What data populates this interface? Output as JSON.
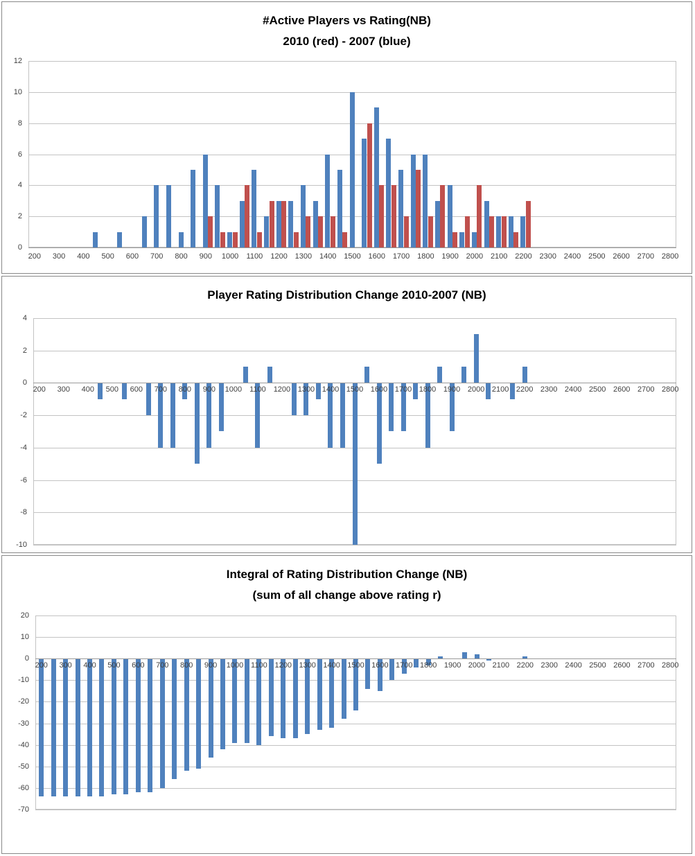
{
  "chart_data": [
    {
      "type": "bar",
      "title": "#Active Players vs Rating(NB)",
      "subtitle": "2010 (red) - 2007 (blue)",
      "xlabel": "",
      "ylabel": "",
      "ylim": [
        0,
        12
      ],
      "y_ticks": [
        12,
        10,
        8,
        6,
        4,
        2,
        0
      ],
      "x_tick_labels": [
        200,
        300,
        400,
        500,
        600,
        700,
        800,
        900,
        1000,
        1100,
        1200,
        1300,
        1400,
        1500,
        1600,
        1700,
        1800,
        1900,
        2000,
        2100,
        2200,
        2300,
        2400,
        2500,
        2600,
        2700,
        2800
      ],
      "grid": true,
      "legend_position": "none",
      "categories": [
        200,
        250,
        300,
        350,
        400,
        450,
        500,
        550,
        600,
        650,
        700,
        750,
        800,
        850,
        900,
        950,
        1000,
        1050,
        1100,
        1150,
        1200,
        1250,
        1300,
        1350,
        1400,
        1450,
        1500,
        1550,
        1600,
        1650,
        1700,
        1750,
        1800,
        1850,
        1900,
        1950,
        2000,
        2050,
        2100,
        2150,
        2200,
        2250,
        2300,
        2350,
        2400,
        2450,
        2500,
        2550,
        2600,
        2650,
        2700,
        2750,
        2800
      ],
      "series": [
        {
          "name": "2007",
          "color": "#4F81BD",
          "values": [
            0,
            0,
            0,
            0,
            0,
            1,
            0,
            1,
            0,
            2,
            4,
            4,
            1,
            5,
            6,
            4,
            1,
            3,
            5,
            2,
            3,
            3,
            4,
            3,
            6,
            5,
            10,
            7,
            9,
            7,
            5,
            6,
            6,
            3,
            4,
            1,
            1,
            3,
            2,
            2,
            2,
            0,
            0,
            0,
            0,
            0,
            0,
            0,
            0,
            0,
            0,
            0,
            0
          ]
        },
        {
          "name": "2010",
          "color": "#C0504D",
          "values": [
            0,
            0,
            0,
            0,
            0,
            0,
            0,
            0,
            0,
            0,
            0,
            0,
            0,
            0,
            2,
            1,
            1,
            4,
            1,
            3,
            3,
            1,
            2,
            2,
            2,
            1,
            0,
            8,
            4,
            4,
            2,
            5,
            2,
            4,
            1,
            2,
            4,
            2,
            2,
            1,
            3,
            0,
            0,
            0,
            0,
            0,
            0,
            0,
            0,
            0,
            0,
            0,
            0
          ]
        }
      ]
    },
    {
      "type": "bar",
      "title": "Player Rating Distribution Change 2010-2007  (NB)",
      "subtitle": "",
      "xlabel": "",
      "ylabel": "",
      "ylim": [
        -10,
        4
      ],
      "y_ticks": [
        4,
        2,
        0,
        -2,
        -4,
        -6,
        -8,
        -10
      ],
      "x_tick_labels": [
        200,
        300,
        400,
        500,
        600,
        700,
        800,
        900,
        1000,
        1100,
        1200,
        1300,
        1400,
        1500,
        1600,
        1700,
        1800,
        1900,
        2000,
        2100,
        2200,
        2300,
        2400,
        2500,
        2600,
        2700,
        2800
      ],
      "grid": true,
      "legend_position": "none",
      "categories": [
        200,
        250,
        300,
        350,
        400,
        450,
        500,
        550,
        600,
        650,
        700,
        750,
        800,
        850,
        900,
        950,
        1000,
        1050,
        1100,
        1150,
        1200,
        1250,
        1300,
        1350,
        1400,
        1450,
        1500,
        1550,
        1600,
        1650,
        1700,
        1750,
        1800,
        1850,
        1900,
        1950,
        2000,
        2050,
        2100,
        2150,
        2200,
        2250,
        2300,
        2350,
        2400,
        2450,
        2500,
        2550,
        2600,
        2650,
        2700,
        2750,
        2800
      ],
      "series": [
        {
          "name": "Change 2010-2007",
          "color": "#4F81BD",
          "values": [
            0,
            0,
            0,
            0,
            0,
            -1,
            0,
            -1,
            0,
            -2,
            -4,
            -4,
            -1,
            -5,
            -4,
            -3,
            0,
            1,
            -4,
            1,
            0,
            -2,
            -2,
            -1,
            -4,
            -4,
            -10,
            1,
            -5,
            -3,
            -3,
            -1,
            -4,
            1,
            -3,
            1,
            3,
            -1,
            0,
            -1,
            1,
            0,
            0,
            0,
            0,
            0,
            0,
            0,
            0,
            0,
            0,
            0,
            0
          ]
        }
      ]
    },
    {
      "type": "bar",
      "title": "Integral of Rating Distribution Change (NB)",
      "subtitle": "(sum of all change above rating r)",
      "xlabel": "",
      "ylabel": "",
      "ylim": [
        -70,
        20
      ],
      "y_ticks": [
        20,
        10,
        0,
        -10,
        -20,
        -30,
        -40,
        -50,
        -60,
        -70
      ],
      "x_tick_labels": [
        200,
        300,
        400,
        500,
        600,
        700,
        800,
        900,
        1000,
        1100,
        1200,
        1300,
        1400,
        1500,
        1600,
        1700,
        1800,
        1900,
        2000,
        2100,
        2200,
        2300,
        2400,
        2500,
        2600,
        2700,
        2800
      ],
      "grid": true,
      "legend_position": "none",
      "categories": [
        200,
        250,
        300,
        350,
        400,
        450,
        500,
        550,
        600,
        650,
        700,
        750,
        800,
        850,
        900,
        950,
        1000,
        1050,
        1100,
        1150,
        1200,
        1250,
        1300,
        1350,
        1400,
        1450,
        1500,
        1550,
        1600,
        1650,
        1700,
        1750,
        1800,
        1850,
        1900,
        1950,
        2000,
        2050,
        2100,
        2150,
        2200,
        2250,
        2300,
        2350,
        2400,
        2450,
        2500,
        2550,
        2600,
        2650,
        2700,
        2750,
        2800
      ],
      "series": [
        {
          "name": "Integral",
          "color": "#4F81BD",
          "values": [
            -64,
            -64,
            -64,
            -64,
            -64,
            -64,
            -63,
            -63,
            -62,
            -62,
            -60,
            -56,
            -52,
            -51,
            -46,
            -42,
            -39,
            -39,
            -40,
            -36,
            -37,
            -37,
            -35,
            -33,
            -32,
            -28,
            -24,
            -14,
            -15,
            -10,
            -7,
            -4,
            -3,
            1,
            0,
            3,
            2,
            -1,
            0,
            0,
            1,
            0,
            0,
            0,
            0,
            0,
            0,
            0,
            0,
            0,
            0,
            0,
            0
          ]
        }
      ]
    }
  ]
}
